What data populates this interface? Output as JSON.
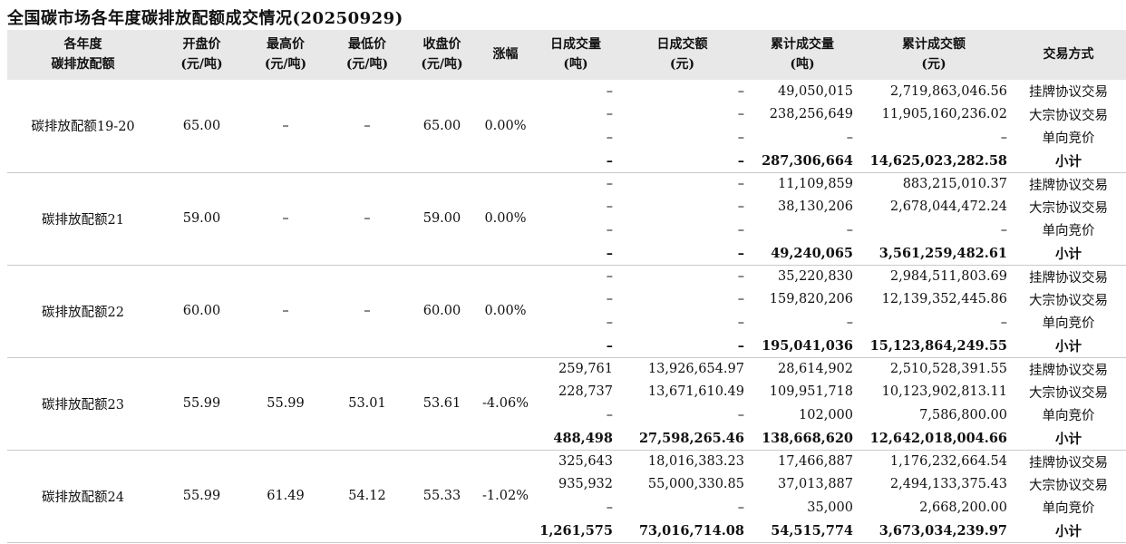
{
  "title": "全国碳市场各年度碳排放配额成交情况(20250929)",
  "table": {
    "headers": [
      {
        "l1": "各年度",
        "l2": "碳排放配额"
      },
      {
        "l1": "开盘价",
        "l2": "(元/吨)"
      },
      {
        "l1": "最高价",
        "l2": "(元/吨)"
      },
      {
        "l1": "最低价",
        "l2": "(元/吨)"
      },
      {
        "l1": "收盘价",
        "l2": "(元/吨)"
      },
      {
        "l1": "涨幅",
        "l2": ""
      },
      {
        "l1": "日成交量",
        "l2": "(吨)"
      },
      {
        "l1": "日成交额",
        "l2": "(元)"
      },
      {
        "l1": "累计成交量",
        "l2": "(吨)"
      },
      {
        "l1": "累计成交额",
        "l2": "(元)"
      },
      {
        "l1": "交易方式",
        "l2": ""
      }
    ],
    "blocks": [
      {
        "name": "碳排放配额19-20",
        "open": "65.00",
        "high": "–",
        "low": "–",
        "close": "65.00",
        "change": "0.00%",
        "rows": [
          {
            "dvol": "–",
            "damt": "–",
            "cvol": "49,050,015",
            "camt": "2,719,863,046.56",
            "method": "挂牌协议交易"
          },
          {
            "dvol": "–",
            "damt": "–",
            "cvol": "238,256,649",
            "camt": "11,905,160,236.02",
            "method": "大宗协议交易"
          },
          {
            "dvol": "–",
            "damt": "–",
            "cvol": "–",
            "camt": "–",
            "method": "单向竞价"
          },
          {
            "dvol": "–",
            "damt": "–",
            "cvol": "287,306,664",
            "camt": "14,625,023,282.58",
            "method": "小计"
          }
        ]
      },
      {
        "name": "碳排放配额21",
        "open": "59.00",
        "high": "–",
        "low": "–",
        "close": "59.00",
        "change": "0.00%",
        "rows": [
          {
            "dvol": "–",
            "damt": "–",
            "cvol": "11,109,859",
            "camt": "883,215,010.37",
            "method": "挂牌协议交易"
          },
          {
            "dvol": "–",
            "damt": "–",
            "cvol": "38,130,206",
            "camt": "2,678,044,472.24",
            "method": "大宗协议交易"
          },
          {
            "dvol": "–",
            "damt": "–",
            "cvol": "–",
            "camt": "–",
            "method": "单向竞价"
          },
          {
            "dvol": "–",
            "damt": "–",
            "cvol": "49,240,065",
            "camt": "3,561,259,482.61",
            "method": "小计"
          }
        ]
      },
      {
        "name": "碳排放配额22",
        "open": "60.00",
        "high": "–",
        "low": "–",
        "close": "60.00",
        "change": "0.00%",
        "rows": [
          {
            "dvol": "–",
            "damt": "–",
            "cvol": "35,220,830",
            "camt": "2,984,511,803.69",
            "method": "挂牌协议交易"
          },
          {
            "dvol": "–",
            "damt": "–",
            "cvol": "159,820,206",
            "camt": "12,139,352,445.86",
            "method": "大宗协议交易"
          },
          {
            "dvol": "–",
            "damt": "–",
            "cvol": "–",
            "camt": "–",
            "method": "单向竞价"
          },
          {
            "dvol": "–",
            "damt": "–",
            "cvol": "195,041,036",
            "camt": "15,123,864,249.55",
            "method": "小计"
          }
        ]
      },
      {
        "name": "碳排放配额23",
        "open": "55.99",
        "high": "55.99",
        "low": "53.01",
        "close": "53.61",
        "change": "-4.06%",
        "rows": [
          {
            "dvol": "259,761",
            "damt": "13,926,654.97",
            "cvol": "28,614,902",
            "camt": "2,510,528,391.55",
            "method": "挂牌协议交易"
          },
          {
            "dvol": "228,737",
            "damt": "13,671,610.49",
            "cvol": "109,951,718",
            "camt": "10,123,902,813.11",
            "method": "大宗协议交易"
          },
          {
            "dvol": "–",
            "damt": "–",
            "cvol": "102,000",
            "camt": "7,586,800.00",
            "method": "单向竞价"
          },
          {
            "dvol": "488,498",
            "damt": "27,598,265.46",
            "cvol": "138,668,620",
            "camt": "12,642,018,004.66",
            "method": "小计"
          }
        ]
      },
      {
        "name": "碳排放配额24",
        "open": "55.99",
        "high": "61.49",
        "low": "54.12",
        "close": "55.33",
        "change": "-1.02%",
        "rows": [
          {
            "dvol": "325,643",
            "damt": "18,016,383.23",
            "cvol": "17,466,887",
            "camt": "1,176,232,664.54",
            "method": "挂牌协议交易"
          },
          {
            "dvol": "935,932",
            "damt": "55,000,330.85",
            "cvol": "37,013,887",
            "camt": "2,494,133,375.43",
            "method": "大宗协议交易"
          },
          {
            "dvol": "–",
            "damt": "–",
            "cvol": "35,000",
            "camt": "2,668,200.00",
            "method": "单向竞价"
          },
          {
            "dvol": "1,261,575",
            "damt": "73,016,714.08",
            "cvol": "54,515,774",
            "camt": "3,673,034,239.97",
            "method": "小计"
          }
        ]
      }
    ]
  }
}
